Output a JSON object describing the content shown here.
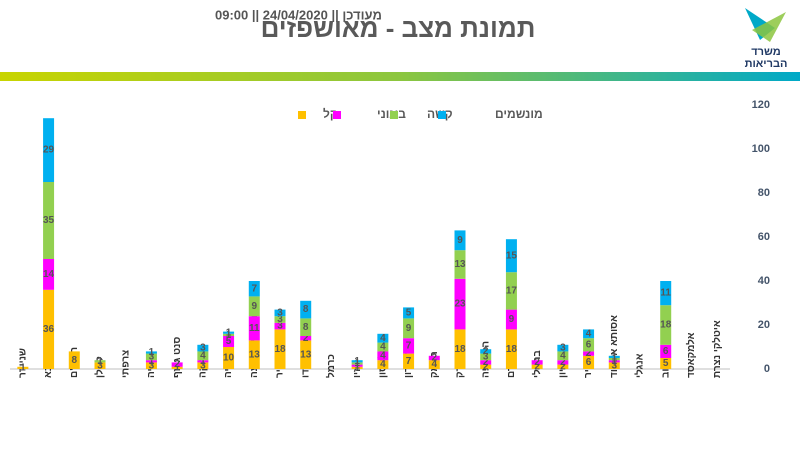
{
  "header": {
    "title": "תמונת מצב - מאושפזים",
    "updated": "מעודכן || 24/04/2020 || 09:00",
    "logo": [
      "משרד",
      "הבריאות"
    ]
  },
  "chart_data": {
    "type": "stacked_bar",
    "categories": [
      "שניידר",
      "שיבא",
      "רמב\"ם",
      "קפלן",
      "צרפתי",
      "פוריה",
      "סנט ג'וזף",
      "סורוקה",
      "נהריה",
      "מעייני הישועה",
      "מאיר",
      "ליניאדו",
      "כרמל",
      "זיו",
      "וולפסון",
      "השרון",
      "העמק",
      "שערי צדק",
      "הלל יפה",
      "עין כרם",
      "ברזילי",
      "בני ציון",
      "שמיר",
      "אסותא אשדוד",
      "אנגלי",
      "איכילוב",
      "אלמקאסד",
      "איטלקי נצרת"
    ],
    "series": [
      {
        "name": "קל",
        "color": "#ffc000",
        "values": [
          1,
          36,
          8,
          3,
          null,
          3,
          1,
          3,
          10,
          13,
          18,
          13,
          null,
          1,
          4,
          7,
          4,
          18,
          2,
          18,
          2,
          2,
          6,
          3,
          null,
          5,
          null,
          null
        ]
      },
      {
        "name": "בינוני",
        "color": "#ff00ff",
        "values": [
          null,
          14,
          null,
          null,
          null,
          1,
          2,
          1,
          5,
          11,
          3,
          2,
          null,
          1,
          4,
          7,
          2,
          23,
          2,
          9,
          2,
          2,
          2,
          1,
          null,
          6,
          null,
          null
        ]
      },
      {
        "name": "קשה",
        "color": "#92d050",
        "values": [
          null,
          35,
          null,
          1,
          null,
          3,
          null,
          4,
          1,
          9,
          3,
          8,
          null,
          1,
          4,
          9,
          null,
          13,
          3,
          17,
          null,
          4,
          6,
          1,
          null,
          18,
          null,
          null
        ]
      },
      {
        "name": "מונשמים",
        "color": "#00b0f0",
        "values": [
          null,
          29,
          null,
          null,
          null,
          1,
          null,
          3,
          1,
          7,
          3,
          8,
          null,
          1,
          4,
          5,
          null,
          9,
          2,
          15,
          null,
          3,
          4,
          1,
          null,
          11,
          null,
          null
        ]
      }
    ],
    "ylim": [
      0,
      120
    ],
    "yticks": [
      0,
      20,
      40,
      60,
      80,
      100,
      120
    ],
    "y_axis_side": "right",
    "legend": "top"
  }
}
